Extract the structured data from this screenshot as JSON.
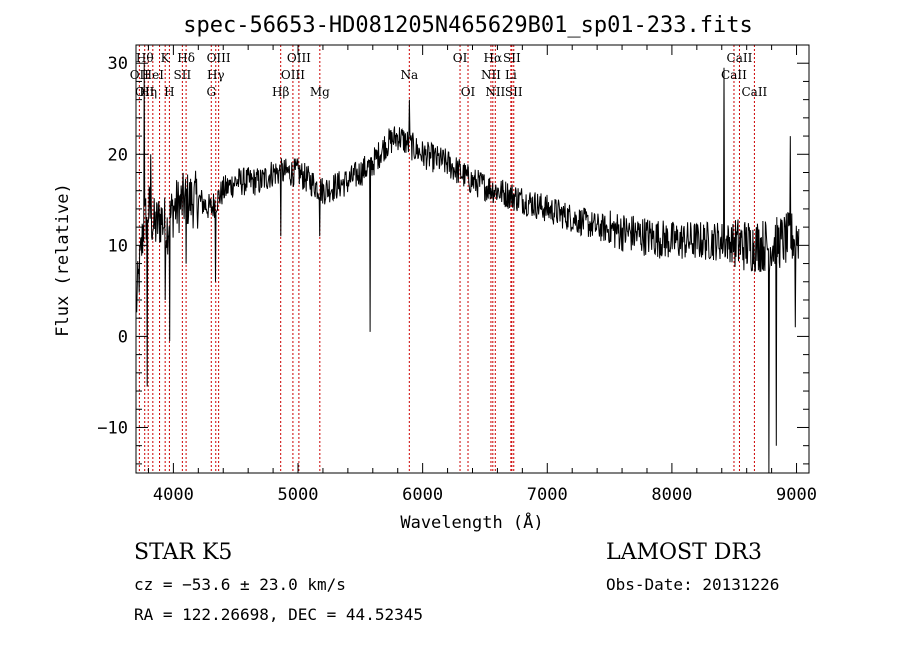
{
  "chart_data": {
    "type": "line",
    "title": "spec-56653-HD081205N465629B01_sp01-233.fits",
    "xlabel": "Wavelength (Å)",
    "ylabel": "Flux (relative)",
    "xlim": [
      3700,
      9100
    ],
    "ylim": [
      -15,
      32
    ],
    "x_ticks": [
      4000,
      5000,
      6000,
      7000,
      8000,
      9000
    ],
    "y_ticks": [
      -10,
      0,
      10,
      20,
      30
    ],
    "grid": false,
    "colors": {
      "line": "#000000",
      "marker": "#cc0000"
    },
    "continuum": [
      {
        "x": 3700,
        "y": 3
      },
      {
        "x": 3760,
        "y": 12
      },
      {
        "x": 3800,
        "y": 14
      },
      {
        "x": 3850,
        "y": 12
      },
      {
        "x": 3900,
        "y": 13
      },
      {
        "x": 3950,
        "y": 12
      },
      {
        "x": 4000,
        "y": 14
      },
      {
        "x": 4100,
        "y": 15
      },
      {
        "x": 4200,
        "y": 15
      },
      {
        "x": 4300,
        "y": 14
      },
      {
        "x": 4400,
        "y": 16
      },
      {
        "x": 4500,
        "y": 17
      },
      {
        "x": 4700,
        "y": 17
      },
      {
        "x": 4800,
        "y": 18
      },
      {
        "x": 5000,
        "y": 18
      },
      {
        "x": 5200,
        "y": 16
      },
      {
        "x": 5400,
        "y": 17
      },
      {
        "x": 5600,
        "y": 19
      },
      {
        "x": 5700,
        "y": 21
      },
      {
        "x": 5800,
        "y": 22
      },
      {
        "x": 5900,
        "y": 21
      },
      {
        "x": 6000,
        "y": 20
      },
      {
        "x": 6200,
        "y": 19
      },
      {
        "x": 6400,
        "y": 17
      },
      {
        "x": 6600,
        "y": 16
      },
      {
        "x": 6800,
        "y": 15
      },
      {
        "x": 7000,
        "y": 14
      },
      {
        "x": 7200,
        "y": 13
      },
      {
        "x": 7400,
        "y": 12
      },
      {
        "x": 7600,
        "y": 11.5
      },
      {
        "x": 7800,
        "y": 11
      },
      {
        "x": 8000,
        "y": 10.5
      },
      {
        "x": 8200,
        "y": 10.5
      },
      {
        "x": 8400,
        "y": 10.5
      },
      {
        "x": 8600,
        "y": 10
      },
      {
        "x": 8800,
        "y": 10
      },
      {
        "x": 9000,
        "y": 11
      }
    ],
    "features": [
      {
        "x": 3765,
        "y": 30
      },
      {
        "x": 3790,
        "y": -5.5
      },
      {
        "x": 3820,
        "y": 20
      },
      {
        "x": 3935,
        "y": 4
      },
      {
        "x": 3970,
        "y": -0.5
      },
      {
        "x": 4102,
        "y": 8
      },
      {
        "x": 4340,
        "y": 6
      },
      {
        "x": 4861,
        "y": 11
      },
      {
        "x": 5175,
        "y": 11
      },
      {
        "x": 5577,
        "y": 0.5
      },
      {
        "x": 5893,
        "y": 26
      },
      {
        "x": 8420,
        "y": 29.5
      },
      {
        "x": 8780,
        "y": -15
      },
      {
        "x": 8840,
        "y": -12
      },
      {
        "x": 8950,
        "y": 22
      },
      {
        "x": 8990,
        "y": 1
      }
    ],
    "lines": [
      {
        "x": 3727,
        "labels": [
          "OII"
        ],
        "row": [
          1
        ]
      },
      {
        "x": 3770,
        "labels": [
          "Hθ",
          "OII"
        ],
        "row": [
          0,
          2
        ]
      },
      {
        "x": 3798,
        "labels": [
          "Hη"
        ],
        "row": [
          2
        ]
      },
      {
        "x": 3835,
        "labels": [
          "HeI"
        ],
        "row": [
          1
        ]
      },
      {
        "x": 3889,
        "labels": [],
        "row": []
      },
      {
        "x": 3934,
        "labels": [
          "K"
        ],
        "row": [
          0
        ]
      },
      {
        "x": 3968,
        "labels": [
          "H"
        ],
        "row": [
          2
        ]
      },
      {
        "x": 4072,
        "labels": [
          "SII"
        ],
        "row": [
          1
        ]
      },
      {
        "x": 4102,
        "labels": [
          "Hδ"
        ],
        "row": [
          0
        ]
      },
      {
        "x": 4304,
        "labels": [
          "G"
        ],
        "row": [
          2
        ]
      },
      {
        "x": 4340,
        "labels": [
          "Hγ"
        ],
        "row": [
          1
        ]
      },
      {
        "x": 4363,
        "labels": [
          "OIII"
        ],
        "row": [
          0
        ]
      },
      {
        "x": 4861,
        "labels": [
          "Hβ"
        ],
        "row": [
          2
        ]
      },
      {
        "x": 4959,
        "labels": [
          "OIII"
        ],
        "row": [
          1
        ]
      },
      {
        "x": 5007,
        "labels": [
          "OIII"
        ],
        "row": [
          0
        ]
      },
      {
        "x": 5175,
        "labels": [
          "Mg"
        ],
        "row": [
          2
        ]
      },
      {
        "x": 5893,
        "labels": [
          "Na"
        ],
        "row": [
          1
        ]
      },
      {
        "x": 6300,
        "labels": [
          "OI"
        ],
        "row": [
          0
        ]
      },
      {
        "x": 6364,
        "labels": [
          "OI"
        ],
        "row": [
          2
        ]
      },
      {
        "x": 6548,
        "labels": [
          "NII"
        ],
        "row": [
          1
        ]
      },
      {
        "x": 6563,
        "labels": [
          "Hα"
        ],
        "row": [
          0
        ]
      },
      {
        "x": 6583,
        "labels": [
          "NII"
        ],
        "row": [
          2
        ]
      },
      {
        "x": 6708,
        "labels": [
          "Li"
        ],
        "row": [
          1
        ]
      },
      {
        "x": 6716,
        "labels": [
          "SII"
        ],
        "row": [
          0
        ]
      },
      {
        "x": 6731,
        "labels": [
          "SII"
        ],
        "row": [
          2
        ]
      },
      {
        "x": 8498,
        "labels": [
          "CaII"
        ],
        "row": [
          1
        ]
      },
      {
        "x": 8542,
        "labels": [
          "CaII"
        ],
        "row": [
          0
        ]
      },
      {
        "x": 8662,
        "labels": [
          "CaII"
        ],
        "row": [
          2
        ]
      }
    ]
  },
  "info": {
    "class": "STAR    K5",
    "survey": "LAMOST DR3",
    "cz": "cz = −53.6 ± 23.0 km/s",
    "obs_date": "Obs-Date: 20131226",
    "radec": "RA = 122.26698, DEC =  44.52345"
  }
}
